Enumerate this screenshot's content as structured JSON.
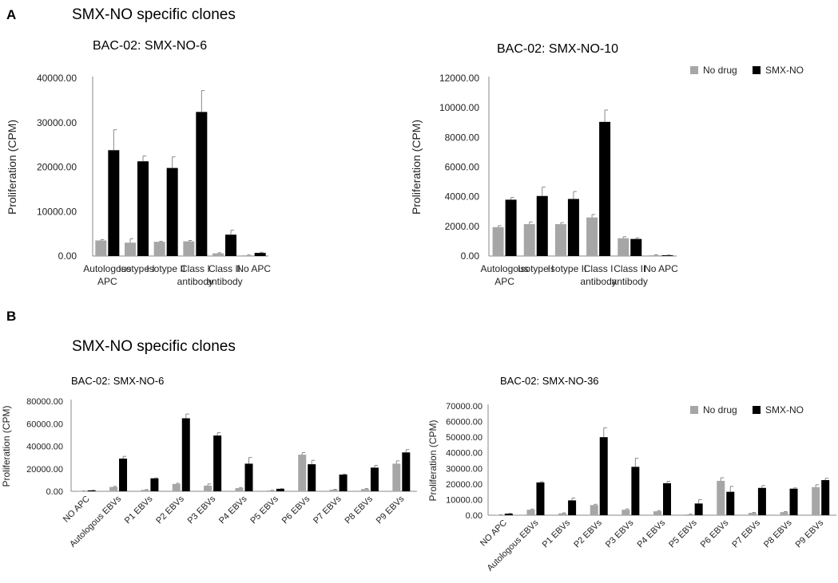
{
  "panels": [
    {
      "letter": "A",
      "section_title": "SMX-NO specific clones"
    },
    {
      "letter": "B",
      "section_title": "SMX-NO specific clones"
    }
  ],
  "colors": {
    "no_drug": "#a6a6a6",
    "smx_no": "#000000",
    "axis": "#888888",
    "error": "#888888"
  },
  "chart_data": [
    {
      "type": "bar",
      "title": "BAC-02: SMX-NO-6",
      "ylabel": "Proliferation (CPM)",
      "ylim": [
        0,
        40000
      ],
      "yticks": [
        0,
        10000,
        20000,
        30000,
        40000
      ],
      "ytick_labels": [
        "0.00",
        "10000.00",
        "20000.00",
        "30000.00",
        "40000.00"
      ],
      "categories": [
        [
          "Autologous",
          "APC"
        ],
        [
          "Isotype I"
        ],
        [
          "Isotype II"
        ],
        [
          "Class I",
          "antibody"
        ],
        [
          "Class II",
          "antibody"
        ],
        [
          "No APC"
        ]
      ],
      "series": [
        {
          "name": "No drug",
          "color": "#a6a6a6",
          "values": [
            3500,
            3000,
            3200,
            3300,
            600,
            150
          ],
          "errors": [
            200,
            900,
            100,
            200,
            150,
            100
          ]
        },
        {
          "name": "SMX-NO",
          "color": "#000000",
          "values": [
            23800,
            21300,
            19800,
            32400,
            4800,
            700
          ],
          "errors": [
            4600,
            1200,
            2500,
            4800,
            1000,
            150
          ]
        }
      ],
      "legend": false,
      "grid": false
    },
    {
      "type": "bar",
      "title": "BAC-02: SMX-NO-10",
      "ylabel": "Proliferation (CPM)",
      "ylim": [
        0,
        12000
      ],
      "yticks": [
        0,
        2000,
        4000,
        6000,
        8000,
        10000,
        12000
      ],
      "ytick_labels": [
        "0.00",
        "2000.00",
        "4000.00",
        "6000.00",
        "8000.00",
        "10000.00",
        "12000.00"
      ],
      "categories": [
        [
          "Autologous",
          "APC"
        ],
        [
          "Isotype I"
        ],
        [
          "Isotype II"
        ],
        [
          "Class I",
          "antibody"
        ],
        [
          "Class II",
          "antibody"
        ],
        [
          "No APC"
        ]
      ],
      "series": [
        {
          "name": "No drug",
          "color": "#a6a6a6",
          "values": [
            1950,
            2150,
            2150,
            2600,
            1200,
            50
          ],
          "errors": [
            100,
            150,
            100,
            200,
            100,
            30
          ]
        },
        {
          "name": "SMX-NO",
          "color": "#000000",
          "values": [
            3800,
            4050,
            3850,
            9050,
            1150,
            50
          ],
          "errors": [
            150,
            600,
            500,
            800,
            80,
            20
          ]
        }
      ],
      "legend": "top-right",
      "grid": false
    },
    {
      "type": "bar",
      "title": "BAC-02: SMX-NO-6",
      "ylabel": "Proliferation (CPM)",
      "ylim": [
        0,
        80000
      ],
      "yticks": [
        0,
        20000,
        40000,
        60000,
        80000
      ],
      "ytick_labels": [
        "0.00",
        "20000.00",
        "40000.00",
        "60000.00",
        "80000.00"
      ],
      "categories": [
        "NO APC",
        "Autologous EBVs",
        "P1 EBVs",
        "P2 EBVs",
        "P3 EBVs",
        "P4 EBVs",
        "P5 EBVs",
        "P6 EBVs",
        "P7 EBVs",
        "P8 EBVs",
        "P9 EBVs"
      ],
      "series": [
        {
          "name": "No drug",
          "color": "#a6a6a6",
          "values": [
            200,
            3800,
            1200,
            6500,
            5000,
            2800,
            700,
            32500,
            1400,
            2000,
            24500
          ],
          "errors": [
            100,
            500,
            300,
            600,
            1500,
            500,
            200,
            1800,
            300,
            400,
            2500
          ]
        },
        {
          "name": "SMX-NO",
          "color": "#000000",
          "values": [
            800,
            29000,
            11500,
            64800,
            49500,
            24500,
            2200,
            24000,
            14800,
            21000,
            34500
          ],
          "errors": [
            200,
            2000,
            400,
            3800,
            2500,
            5500,
            200,
            3500,
            500,
            2000,
            2500
          ]
        }
      ],
      "legend": false,
      "grid": false
    },
    {
      "type": "bar",
      "title": "BAC-02: SMX-NO-36",
      "ylabel": "Proliferation (CPM)",
      "ylim": [
        0,
        70000
      ],
      "yticks": [
        0,
        10000,
        20000,
        30000,
        40000,
        50000,
        60000,
        70000
      ],
      "ytick_labels": [
        "0.00",
        "10000.00",
        "20000.00",
        "30000.00",
        "40000.00",
        "50000.00",
        "60000.00",
        "70000.00"
      ],
      "categories": [
        "NO APC",
        "Autologous EBVs",
        "P1 EBVs",
        "P2 EBVs",
        "P3 EBVs",
        "P4 EBVs",
        "P5 EBVs",
        "P6 EBVs",
        "P7 EBVs",
        "P8 EBVs",
        "P9 EBVs"
      ],
      "series": [
        {
          "name": "No drug",
          "color": "#a6a6a6",
          "values": [
            200,
            3500,
            1200,
            6500,
            3500,
            2500,
            500,
            22000,
            1500,
            2000,
            18000
          ],
          "errors": [
            100,
            400,
            300,
            500,
            500,
            400,
            200,
            2000,
            300,
            300,
            1500
          ]
        },
        {
          "name": "SMX-NO",
          "color": "#000000",
          "values": [
            1000,
            21000,
            9500,
            50000,
            31000,
            20500,
            7500,
            15000,
            17500,
            17000,
            22500
          ],
          "errors": [
            200,
            500,
            1500,
            6000,
            5500,
            1200,
            2500,
            3500,
            1500,
            500,
            1200
          ]
        }
      ],
      "legend": "top-right",
      "grid": false
    }
  ]
}
